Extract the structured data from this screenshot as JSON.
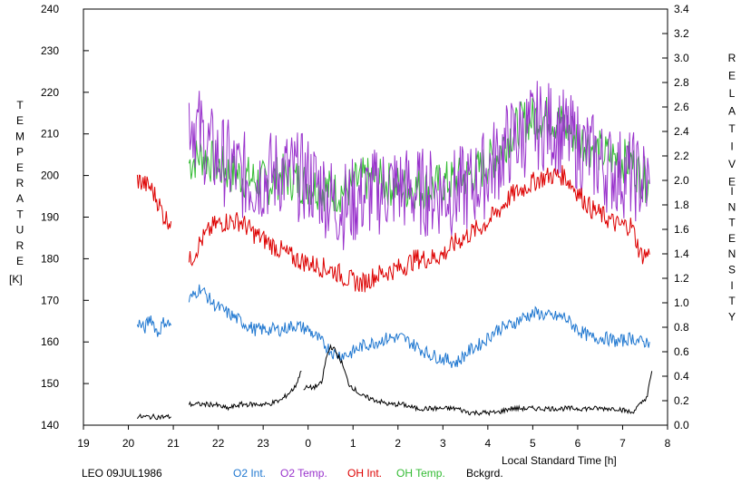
{
  "chart_data": {
    "type": "line",
    "left_axis": {
      "label_letters": [
        "T",
        "E",
        "M",
        "P",
        "E",
        "R",
        "A",
        "T",
        "U",
        "R",
        "E"
      ],
      "unit": "[K]",
      "ticks": [
        140,
        150,
        160,
        170,
        180,
        190,
        200,
        210,
        220,
        230,
        240
      ],
      "range": [
        140,
        240
      ]
    },
    "right_axis": {
      "label_words": [
        [
          "R",
          "E",
          "L",
          "A",
          "T",
          "I",
          "V",
          "E"
        ],
        [
          "I",
          "N",
          "T",
          "E",
          "N",
          "S",
          "I",
          "T",
          "Y"
        ]
      ],
      "ticks": [
        "0.0",
        "0.2",
        "0.4",
        "0.6",
        "0.8",
        "1.0",
        "1.2",
        "1.4",
        "1.6",
        "1.8",
        "2.0",
        "2.2",
        "2.4",
        "2.6",
        "2.8",
        "3.0",
        "3.2",
        "3.4"
      ],
      "range": [
        0.0,
        3.4
      ]
    },
    "x_axis": {
      "label": "Local Standard Time [h]",
      "tick_labels": [
        "19",
        "20",
        "21",
        "22",
        "23",
        "0",
        "1",
        "2",
        "3",
        "4",
        "5",
        "6",
        "7",
        "8"
      ],
      "range_hours": [
        19,
        32
      ]
    },
    "station_label": "LEO 09JUL1986",
    "series": [
      {
        "name": "O2 Int.",
        "color": "#1f77d0",
        "axis": "left",
        "segments": [
          {
            "x": [
              20.2,
              20.35,
              20.5,
              20.65,
              20.8,
              20.95
            ],
            "y": [
              165,
              163,
              166,
              162,
              165,
              164
            ]
          },
          {
            "x": [
              21.35,
              21.6,
              21.9,
              22.2,
              22.5,
              22.8,
              23.1,
              23.4,
              23.7,
              24.0,
              24.3,
              24.6,
              24.9,
              25.2,
              25.5,
              25.8,
              26.1,
              26.4,
              26.7,
              27.0,
              27.3,
              27.6,
              27.9,
              28.2,
              28.5,
              28.8,
              29.1,
              29.4,
              29.7,
              30.0,
              30.3,
              30.6,
              30.9,
              31.2,
              31.4,
              31.6
            ],
            "y": [
              170,
              173,
              169,
              167,
              165,
              163,
              163,
              163,
              164,
              163,
              160,
              157,
              157,
              159,
              160,
              161,
              161,
              159,
              157,
              156,
              155,
              158,
              160,
              163,
              164,
              166,
              167,
              166,
              166,
              163,
              161,
              161,
              160,
              161,
              160,
              160
            ]
          }
        ]
      },
      {
        "name": "O2 Temp.",
        "color": "#9933cc",
        "axis": "left",
        "segments": [
          {
            "x": [
              21.35,
              21.6,
              21.9,
              22.2,
              22.5,
              22.8,
              23.1,
              23.4,
              23.7,
              24.0,
              24.3,
              24.6,
              24.9,
              25.2,
              25.5,
              25.8,
              26.1,
              26.4,
              26.7,
              27.0,
              27.3,
              27.6,
              27.9,
              28.2,
              28.5,
              28.8,
              29.1,
              29.4,
              29.7,
              30.0,
              30.3,
              30.6,
              30.9,
              31.2,
              31.4,
              31.6
            ],
            "y": [
              215,
              210,
              205,
              203,
              200,
              199,
              200,
              201,
              200,
              199,
              197,
              193,
              193,
              195,
              196,
              197,
              197,
              196,
              196,
              196,
              196,
              197,
              200,
              204,
              208,
              210,
              212,
              212,
              210,
              207,
              205,
              202,
              201,
              200,
              199,
              198
            ]
          }
        ]
      },
      {
        "name": "OH Int.",
        "color": "#dd0000",
        "axis": "left",
        "segments": [
          {
            "x": [
              20.2,
              20.35,
              20.5,
              20.65,
              20.8,
              20.95
            ],
            "y": [
              199,
              198,
              197,
              194,
              190,
              189
            ]
          },
          {
            "x": [
              21.35,
              21.6,
              21.9,
              22.2,
              22.5,
              22.8,
              23.1,
              23.4,
              23.7,
              24.0,
              24.3,
              24.6,
              24.9,
              25.2,
              25.5,
              25.8,
              26.1,
              26.4,
              26.7,
              27.0,
              27.3,
              27.6,
              27.9,
              28.2,
              28.5,
              28.8,
              29.1,
              29.4,
              29.7,
              30.0,
              30.3,
              30.6,
              30.9,
              31.2,
              31.4,
              31.6
            ],
            "y": [
              179,
              184,
              188,
              189,
              189,
              186,
              184,
              182,
              180,
              179,
              178,
              177,
              175,
              174,
              176,
              177,
              178,
              180,
              180,
              181,
              184,
              186,
              188,
              191,
              195,
              197,
              199,
              200,
              200,
              196,
              192,
              190,
              188,
              188,
              181,
              181
            ]
          }
        ]
      },
      {
        "name": "OH Temp.",
        "color": "#33bb33",
        "axis": "left",
        "segments": [
          {
            "x": [
              21.35,
              21.6,
              21.9,
              22.2,
              22.5,
              22.8,
              23.1,
              23.4,
              23.7,
              24.0,
              24.3,
              24.6,
              24.9,
              25.2,
              25.5,
              25.8,
              26.1,
              26.4,
              26.7,
              27.0,
              27.3,
              27.6,
              27.9,
              28.2,
              28.5,
              28.8,
              29.1,
              29.4,
              29.7,
              30.0,
              30.3,
              30.6,
              30.9,
              31.2,
              31.4,
              31.6
            ],
            "y": [
              203,
              205,
              203,
              201,
              200,
              199,
              198,
              200,
              199,
              198,
              197,
              196,
              197,
              199,
              199,
              198,
              197,
              197,
              197,
              198,
              199,
              200,
              202,
              205,
              210,
              213,
              214,
              214,
              212,
              209,
              207,
              205,
              204,
              203,
              200,
              198
            ]
          }
        ]
      },
      {
        "name": "Bckgrd.",
        "color": "#000000",
        "axis": "left",
        "segments": [
          {
            "x": [
              20.2,
              20.4,
              20.6,
              20.8,
              20.95
            ],
            "y": [
              142,
              142,
              142,
              142,
              142
            ]
          },
          {
            "x": [
              21.35,
              21.6,
              21.9,
              22.2,
              22.5,
              22.8,
              23.1,
              23.4,
              23.7,
              23.85
            ],
            "y": [
              145,
              145,
              145,
              144,
              145,
              145,
              145,
              146,
              149,
              153
            ]
          },
          {
            "x": [
              23.9,
              24.1,
              24.3,
              24.4,
              24.5,
              24.6,
              24.75,
              24.9,
              25.2,
              25.5,
              25.8,
              26.1,
              26.4,
              26.7,
              27.0,
              27.3,
              27.6,
              27.9,
              28.2,
              28.5,
              28.8,
              29.1,
              29.4,
              29.7,
              30.0,
              30.3,
              30.6,
              30.9,
              31.2,
              31.4,
              31.55,
              31.65
            ],
            "y": [
              149,
              149,
              150,
              156,
              159,
              158,
              155,
              150,
              147,
              146,
              145,
              145,
              144,
              144,
              144,
              144,
              143,
              143,
              143,
              144,
              144,
              144,
              144,
              144,
              144,
              144,
              144,
              144,
              143,
              145,
              147,
              153
            ]
          }
        ]
      }
    ]
  }
}
